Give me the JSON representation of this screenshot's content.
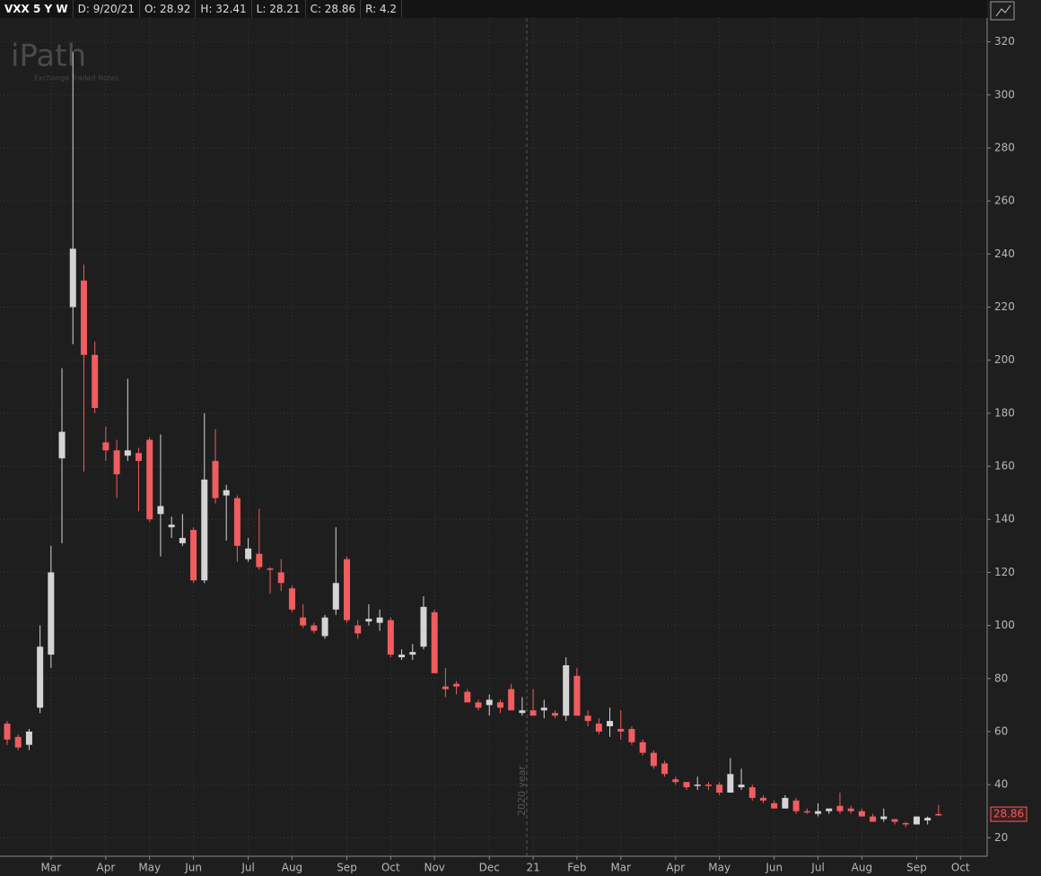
{
  "header": {
    "symbol": "VXX 5 Y W",
    "date": "D: 9/20/21",
    "open": "O: 28.92",
    "high": "H: 32.41",
    "low": "L: 28.21",
    "close": "C: 28.86",
    "range": "R: 4.2"
  },
  "logo": {
    "name": "iPath",
    "tagline": "Exchange Traded Notes"
  },
  "chart_data": {
    "type": "candlestick",
    "annotation": "2020 year",
    "up_color": "#d4d4d4",
    "down_color": "#f05c5f",
    "grid": true,
    "ylim": [
      13,
      329
    ],
    "yticks": [
      20,
      40,
      60,
      80,
      100,
      120,
      140,
      160,
      180,
      200,
      220,
      240,
      260,
      280,
      300,
      320
    ],
    "categories": [
      null,
      null,
      null,
      null,
      "Mar",
      null,
      null,
      null,
      null,
      "Apr",
      null,
      null,
      null,
      "May",
      null,
      null,
      null,
      "Jun",
      null,
      null,
      null,
      null,
      "Jul",
      null,
      null,
      null,
      "Aug",
      null,
      null,
      null,
      null,
      "Sep",
      null,
      null,
      null,
      "Oct",
      null,
      null,
      null,
      "Nov",
      null,
      null,
      null,
      null,
      "Dec",
      null,
      null,
      null,
      "21",
      null,
      null,
      null,
      "Feb",
      null,
      null,
      null,
      "Mar",
      null,
      null,
      null,
      null,
      "Apr",
      null,
      null,
      null,
      "May",
      null,
      null,
      null,
      null,
      "Jun",
      null,
      null,
      null,
      "Jul",
      null,
      null,
      null,
      "Aug",
      null,
      null,
      null,
      null,
      "Sep",
      null,
      null,
      null,
      "Oct"
    ],
    "open": [
      63,
      58,
      55,
      69,
      89,
      163,
      220,
      230,
      202,
      169,
      166,
      164,
      165,
      170,
      142,
      137,
      131,
      136,
      117,
      162,
      149,
      148,
      125,
      127,
      121.5,
      120,
      114,
      103,
      100,
      96,
      106,
      125,
      100,
      101.5,
      101,
      102,
      88,
      89,
      92,
      105,
      77,
      78,
      75,
      71,
      70,
      71,
      76,
      67,
      68,
      68,
      67,
      66,
      81,
      66,
      63,
      62,
      61,
      61,
      56,
      52,
      48,
      42,
      41,
      39.5,
      40,
      40,
      37,
      39,
      39,
      35,
      33,
      31,
      34,
      30,
      29,
      30,
      32,
      31,
      30,
      28,
      27,
      27,
      25.5,
      25,
      26.5,
      28.92,
      null,
      null
    ],
    "high": [
      64,
      59,
      61,
      100,
      130,
      197,
      316,
      236,
      207,
      175,
      170,
      193,
      167,
      171,
      172,
      141,
      142,
      137,
      180,
      174,
      153,
      149,
      133,
      144,
      122,
      125,
      115,
      108,
      101,
      104,
      137,
      126,
      102,
      108,
      106,
      103,
      91,
      93,
      111,
      106,
      84,
      79,
      76,
      72,
      74,
      72,
      78,
      73,
      76,
      72,
      68,
      88,
      84,
      68,
      65,
      69,
      68,
      62,
      57,
      53,
      49,
      43,
      41,
      43,
      41,
      41,
      50,
      46,
      40,
      36,
      34,
      36,
      35,
      31,
      33,
      31,
      37,
      32,
      31,
      29,
      31,
      27,
      26,
      28,
      28,
      32.41,
      null,
      null
    ],
    "low": [
      55,
      53,
      53,
      67,
      84,
      131,
      206,
      158,
      180,
      162,
      148,
      162,
      143,
      139,
      126,
      133,
      130,
      116,
      116,
      146,
      132,
      124,
      124,
      121,
      112,
      113,
      105,
      99,
      97,
      95,
      104,
      101,
      95,
      100,
      98,
      88,
      87,
      87,
      91,
      82,
      73,
      74,
      71,
      68,
      66,
      67,
      68,
      66,
      66,
      65,
      65,
      64,
      66,
      62,
      59,
      58,
      57,
      55,
      51,
      46,
      43,
      40,
      38,
      38,
      38,
      36,
      37,
      38,
      34,
      33,
      31,
      31,
      29,
      29,
      28,
      29,
      29,
      29,
      28,
      26,
      26,
      25,
      24,
      25,
      25,
      28.21,
      null,
      null
    ],
    "close": [
      57,
      54,
      60,
      92,
      120,
      173,
      242,
      202,
      182,
      166,
      157,
      166,
      162,
      140,
      145,
      138,
      133,
      117,
      155,
      148,
      151,
      130,
      129,
      122,
      121,
      116,
      106,
      100,
      98,
      103,
      116,
      102,
      97,
      102.5,
      103,
      89,
      89,
      90,
      107,
      82,
      76,
      77,
      71,
      69,
      72,
      69,
      68,
      68,
      66,
      69,
      66,
      85,
      66,
      64,
      60,
      64,
      60,
      56,
      52,
      47,
      44,
      41,
      39,
      40,
      39.5,
      37,
      44,
      40,
      35,
      34,
      31,
      35,
      30,
      29.5,
      30,
      31,
      30,
      30,
      28,
      26,
      28,
      26,
      25,
      28,
      27.5,
      28.86,
      null,
      null
    ]
  }
}
